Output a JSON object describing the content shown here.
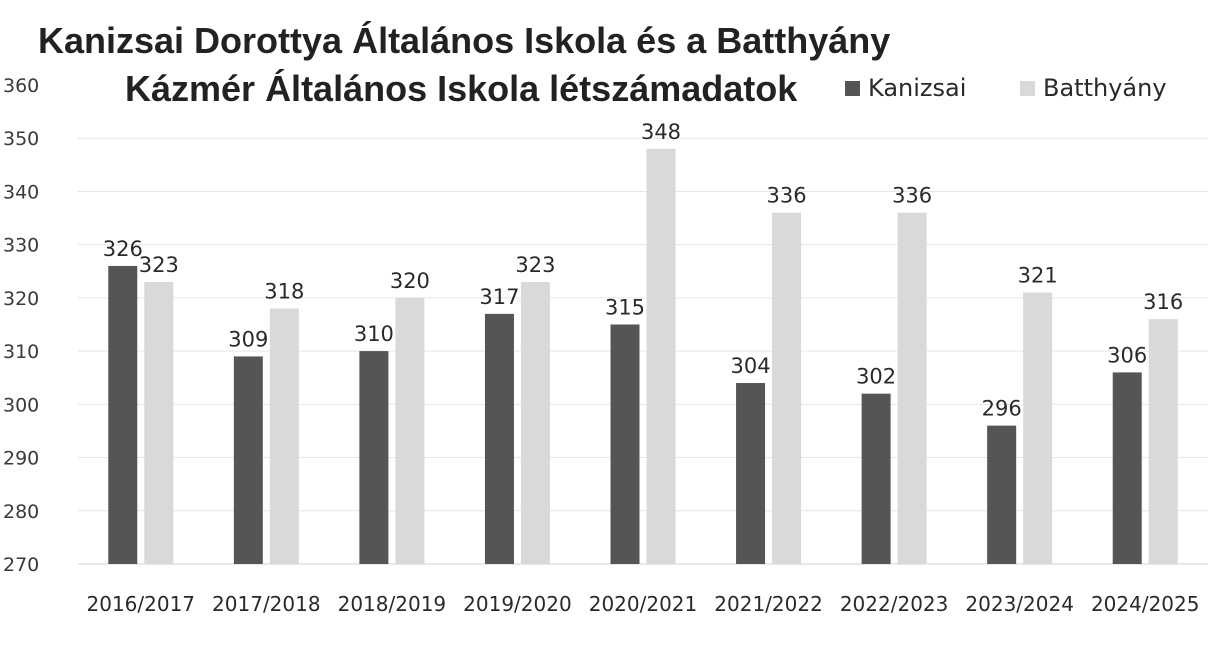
{
  "chart_data": {
    "type": "bar",
    "title_lines": [
      "Kanizsai Dorottya Általános Iskola és a Batthyány",
      "Kázmér Általános Iskola létszámadatok"
    ],
    "categories": [
      "2016/2017",
      "2017/2018",
      "2018/2019",
      "2019/2020",
      "2020/2021",
      "2021/2022",
      "2022/2023",
      "2023/2024",
      "2024/2025"
    ],
    "series": [
      {
        "name": "Kanizsai",
        "color": "#555555",
        "values": [
          326,
          309,
          310,
          317,
          315,
          304,
          302,
          296,
          306
        ]
      },
      {
        "name": "Batthyány",
        "color": "#d9d9d9",
        "values": [
          323,
          318,
          320,
          323,
          348,
          336,
          336,
          321,
          316
        ]
      }
    ],
    "ylim": [
      270,
      360
    ],
    "yticks": [
      270,
      280,
      290,
      300,
      310,
      320,
      330,
      340,
      350,
      360
    ],
    "grid": true,
    "legend_position": "top-right",
    "data_labels": true
  }
}
